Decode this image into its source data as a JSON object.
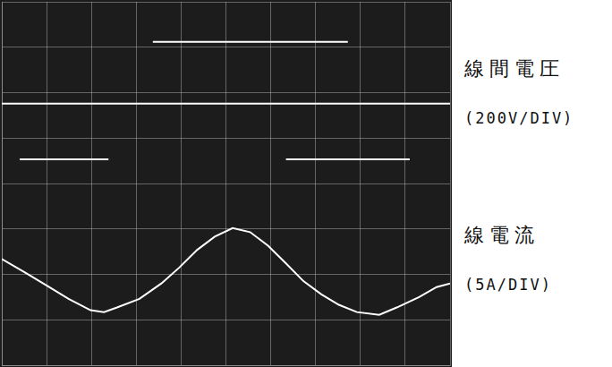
{
  "chart_data": {
    "type": "line",
    "xlim": [
      0,
      10
    ],
    "xticks": [
      0,
      1,
      2,
      3,
      4,
      5,
      6,
      7,
      8,
      9,
      10
    ],
    "ylim": [
      -4,
      4
    ],
    "yticks": [
      -4,
      -3,
      -2,
      -1,
      0,
      1,
      2,
      3,
      4
    ],
    "grid": true,
    "tick_labels": false,
    "annotations": [
      "(200V/DIV)",
      "(5A/DIV)"
    ],
    "series": [
      {
        "name": "線間電圧",
        "color": "#ffffff",
        "line_style": "solid",
        "x": [
          0,
          10,
          10,
          3.37,
          7.72,
          7.72,
          0.4,
          2.38,
          2.38,
          6.34,
          9.1
        ],
        "values": [
          1.76,
          1.76,
          null,
          3.12,
          3.12,
          null,
          0.53,
          0.53,
          null,
          0.53,
          0.53
        ]
      },
      {
        "name": "線電流",
        "color": "#ffffff",
        "line_style": "solid",
        "x": [
          0,
          0.5,
          0.99,
          1.49,
          1.98,
          2.28,
          2.57,
          3.07,
          3.56,
          3.96,
          4.36,
          4.75,
          5.15,
          5.54,
          5.94,
          6.34,
          6.73,
          7.13,
          7.52,
          7.92,
          8.42,
          8.81,
          9.31,
          9.7,
          10
        ],
        "values": [
          -1.66,
          -1.95,
          -2.24,
          -2.54,
          -2.79,
          -2.83,
          -2.73,
          -2.54,
          -2.2,
          -1.85,
          -1.46,
          -1.17,
          -0.98,
          -1.07,
          -1.37,
          -1.76,
          -2.15,
          -2.44,
          -2.67,
          -2.83,
          -2.89,
          -2.73,
          -2.5,
          -2.28,
          -2.2
        ]
      }
    ]
  }
}
